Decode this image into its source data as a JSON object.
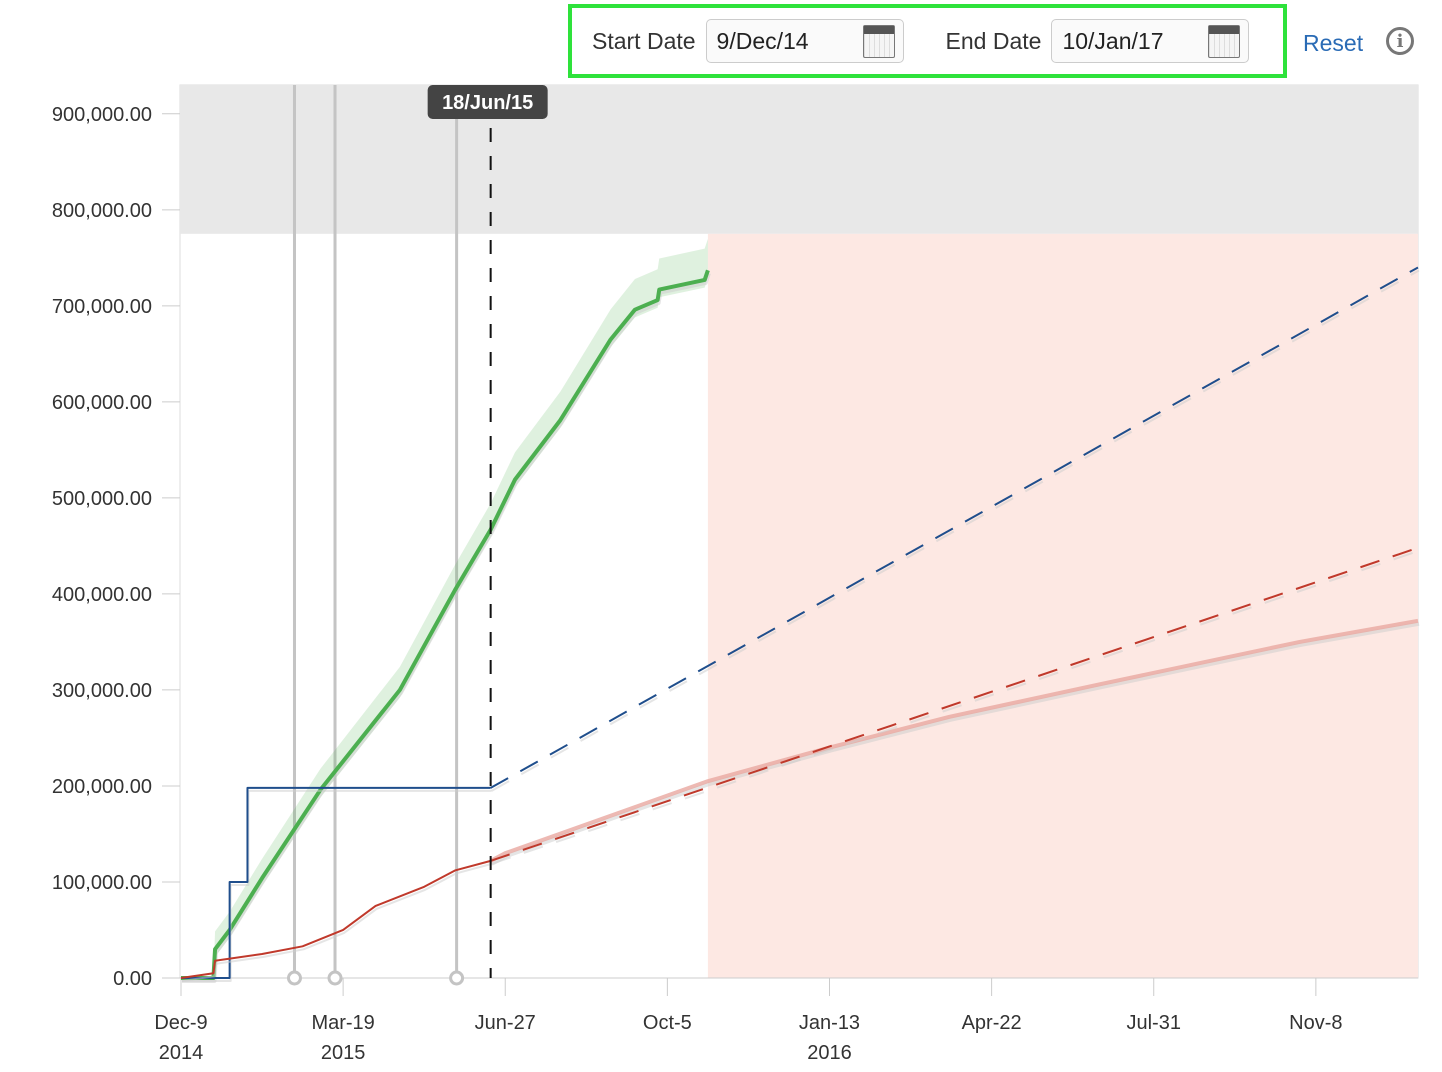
{
  "controls": {
    "start_label": "Start Date",
    "start_value": "9/Dec/14",
    "end_label": "End Date",
    "end_value": "10/Jan/17",
    "reset_label": "Reset",
    "info_icon": "info-icon",
    "calendar_icon": "calendar-icon"
  },
  "chart_data": {
    "type": "line",
    "x_range": [
      "2014-12-09",
      "2017-01-10"
    ],
    "ylim": [
      0,
      930000
    ],
    "grid": true,
    "y_ticks": [
      0,
      100000,
      200000,
      300000,
      400000,
      500000,
      600000,
      700000,
      800000,
      900000
    ],
    "y_tick_labels": [
      "0.00",
      "100,000.00",
      "200,000.00",
      "300,000.00",
      "400,000.00",
      "500,000.00",
      "600,000.00",
      "700,000.00",
      "800,000.00",
      "900,000.00"
    ],
    "x_ticks": [
      {
        "date": "2014-12-09",
        "label": "Dec-9",
        "sub": "2014"
      },
      {
        "date": "2015-03-19",
        "label": "Mar-19",
        "sub": "2015"
      },
      {
        "date": "2015-06-27",
        "label": "Jun-27",
        "sub": ""
      },
      {
        "date": "2015-10-05",
        "label": "Oct-5",
        "sub": ""
      },
      {
        "date": "2016-01-13",
        "label": "Jan-13",
        "sub": "2016"
      },
      {
        "date": "2016-04-22",
        "label": "Apr-22",
        "sub": ""
      },
      {
        "date": "2016-07-31",
        "label": "Jul-31",
        "sub": ""
      },
      {
        "date": "2016-11-08",
        "label": "Nov-8",
        "sub": ""
      }
    ],
    "colors": {
      "green": "#4caf50",
      "blue": "#1f4e8c",
      "red": "#c0392b",
      "gray_band": "#e8e8e8",
      "pink_region": "#fde8e3"
    },
    "gray_band_above": 775000,
    "pink_region_from": "2015-10-30",
    "markers": [
      "2015-02-17",
      "2015-03-14",
      "2015-05-28"
    ],
    "current_date": {
      "date": "2015-06-18",
      "label": "18/Jun/15"
    },
    "series": [
      {
        "key": "green",
        "style": "solid",
        "points": [
          [
            "2014-12-09",
            0
          ],
          [
            "2014-12-29",
            0
          ],
          [
            "2014-12-30",
            30000
          ],
          [
            "2015-01-08",
            50000
          ],
          [
            "2015-01-28",
            104000
          ],
          [
            "2015-03-05",
            196000
          ],
          [
            "2015-04-23",
            300000
          ],
          [
            "2015-05-27",
            404000
          ],
          [
            "2015-06-18",
            467000
          ],
          [
            "2015-07-03",
            519000
          ],
          [
            "2015-07-31",
            581000
          ],
          [
            "2015-08-31",
            665000
          ],
          [
            "2015-09-15",
            696000
          ],
          [
            "2015-09-29",
            706000
          ],
          [
            "2015-09-30",
            717000
          ],
          [
            "2015-10-28",
            727000
          ],
          [
            "2015-10-30",
            737000
          ]
        ]
      },
      {
        "key": "blue",
        "style": "step",
        "points": [
          [
            "2014-12-09",
            0
          ],
          [
            "2015-01-08",
            0
          ],
          [
            "2015-01-08",
            100000
          ],
          [
            "2015-01-19",
            100000
          ],
          [
            "2015-01-19",
            198000
          ],
          [
            "2015-06-18",
            198000
          ]
        ]
      },
      {
        "key": "blue",
        "style": "dashed",
        "points": [
          [
            "2015-06-18",
            198000
          ],
          [
            "2017-01-10",
            740000
          ]
        ]
      },
      {
        "key": "red",
        "style": "solid",
        "points": [
          [
            "2014-12-09",
            0
          ],
          [
            "2014-12-29",
            5000
          ],
          [
            "2014-12-30",
            18000
          ],
          [
            "2015-01-28",
            25000
          ],
          [
            "2015-02-22",
            33000
          ],
          [
            "2015-03-19",
            50000
          ],
          [
            "2015-04-08",
            75000
          ],
          [
            "2015-05-08",
            95000
          ],
          [
            "2015-05-27",
            112000
          ],
          [
            "2015-06-18",
            122000
          ]
        ]
      },
      {
        "key": "red",
        "style": "faded",
        "points": [
          [
            "2015-06-18",
            122000
          ],
          [
            "2015-06-27",
            130000
          ],
          [
            "2015-10-30",
            205000
          ],
          [
            "2016-01-13",
            240000
          ],
          [
            "2016-03-27",
            272000
          ],
          [
            "2016-06-28",
            306000
          ],
          [
            "2016-10-29",
            350000
          ],
          [
            "2017-01-10",
            372000
          ]
        ]
      },
      {
        "key": "red",
        "style": "dashed",
        "points": [
          [
            "2015-06-18",
            122000
          ],
          [
            "2017-01-10",
            448000
          ]
        ]
      }
    ]
  }
}
